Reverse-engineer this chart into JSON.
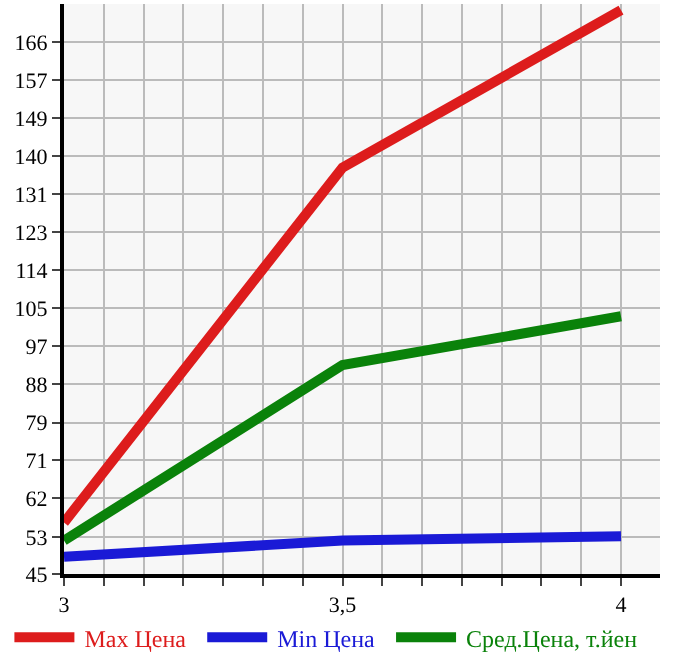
{
  "chart_data": {
    "type": "line",
    "x": [
      3,
      3.5,
      4
    ],
    "series": [
      {
        "name": "Max Цена",
        "color": "#dd1c1c",
        "values": [
          56.7,
          137.4,
          173.2
        ]
      },
      {
        "name": "Min Цена",
        "color": "#1a1ad6",
        "values": [
          48.9,
          52.6,
          53.6
        ]
      },
      {
        "name": "Сред.Цена, т.йен",
        "color": "#0a820a",
        "values": [
          52.6,
          92.5,
          103.6
        ]
      }
    ],
    "xlim": [
      3,
      4.07
    ],
    "xticks": [
      {
        "value": 3,
        "label": "3"
      },
      {
        "value": 3.071,
        "label": null
      },
      {
        "value": 3.143,
        "label": null
      },
      {
        "value": 3.214,
        "label": null
      },
      {
        "value": 3.286,
        "label": null
      },
      {
        "value": 3.357,
        "label": null
      },
      {
        "value": 3.429,
        "label": null
      },
      {
        "value": 3.5,
        "label": "3,5"
      },
      {
        "value": 3.571,
        "label": null
      },
      {
        "value": 3.643,
        "label": null
      },
      {
        "value": 3.714,
        "label": null
      },
      {
        "value": 3.786,
        "label": null
      },
      {
        "value": 3.857,
        "label": null
      },
      {
        "value": 3.929,
        "label": null
      },
      {
        "value": 4,
        "label": "4"
      }
    ],
    "ylim": [
      45,
      174.6
    ],
    "yticks": [
      {
        "value": 45,
        "label": "45"
      },
      {
        "value": 53.4,
        "label": "53"
      },
      {
        "value": 62.29,
        "label": "62"
      },
      {
        "value": 70.93,
        "label": "71"
      },
      {
        "value": 79.4,
        "label": "79"
      },
      {
        "value": 88.21,
        "label": "88"
      },
      {
        "value": 96.86,
        "label": "97"
      },
      {
        "value": 105.5,
        "label": "105"
      },
      {
        "value": 114.14,
        "label": "114"
      },
      {
        "value": 122.79,
        "label": "123"
      },
      {
        "value": 131.43,
        "label": "131"
      },
      {
        "value": 140.07,
        "label": "140"
      },
      {
        "value": 148.71,
        "label": "149"
      },
      {
        "value": 157.36,
        "label": "157"
      },
      {
        "value": 166,
        "label": "166"
      }
    ],
    "grid": true,
    "legend": "bottom",
    "marker": "none",
    "line_style": "solid"
  }
}
